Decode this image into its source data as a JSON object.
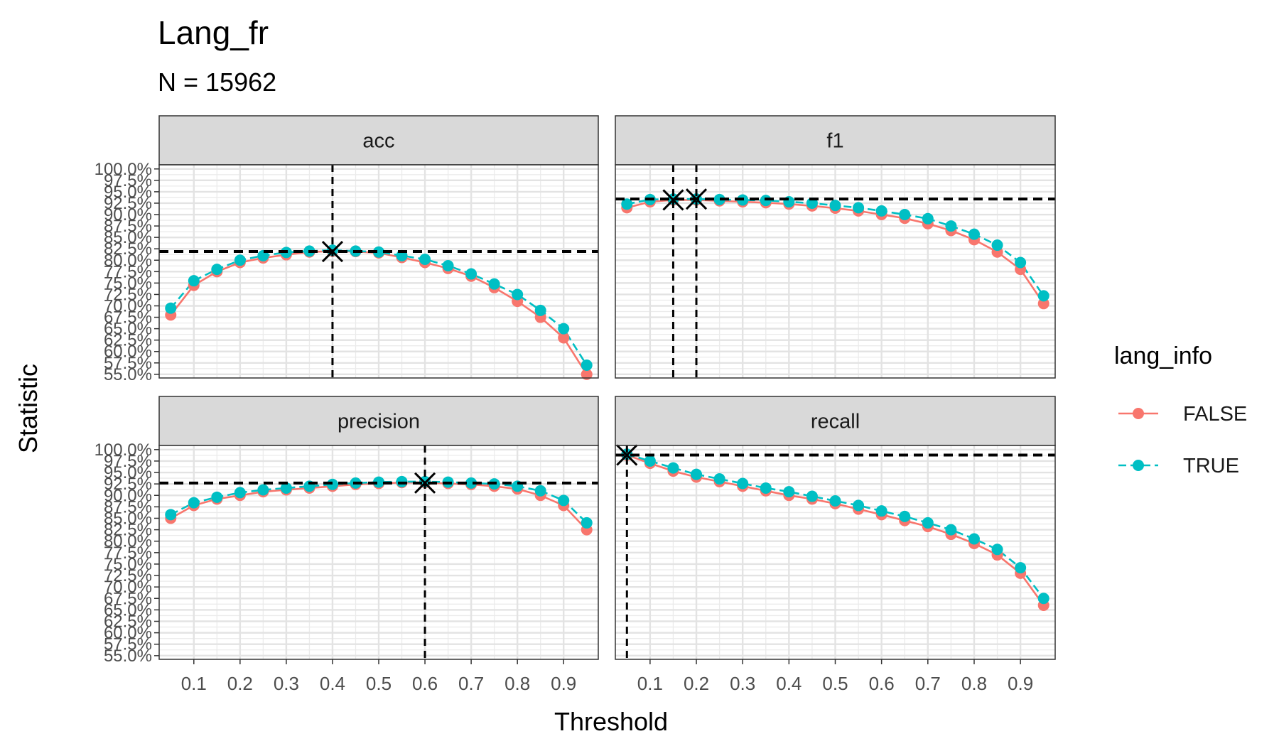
{
  "title": "Lang_fr",
  "subtitle": "N = 15962",
  "xlabel": "Threshold",
  "ylabel": "Statistic",
  "legend": {
    "title": "lang_info",
    "entries": [
      {
        "label": "FALSE",
        "color": "#F8766D"
      },
      {
        "label": "TRUE",
        "color": "#00BFC4"
      }
    ]
  },
  "chart_data": {
    "type": "line",
    "facets": [
      "acc",
      "f1",
      "precision",
      "recall"
    ],
    "x_ticks": [
      "0.1",
      "0.2",
      "0.3",
      "0.4",
      "0.5",
      "0.6",
      "0.7",
      "0.8",
      "0.9"
    ],
    "y_ticks": [
      "55.0%",
      "57.5%",
      "60.0%",
      "62.5%",
      "65.0%",
      "67.5%",
      "70.0%",
      "72.5%",
      "75.0%",
      "77.5%",
      "80.0%",
      "82.5%",
      "85.0%",
      "87.5%",
      "90.0%",
      "92.5%",
      "95.0%",
      "97.5%",
      "100.0%"
    ],
    "xlim": [
      0.025,
      0.975
    ],
    "x": [
      0.05,
      0.1,
      0.15,
      0.2,
      0.25,
      0.3,
      0.35,
      0.4,
      0.45,
      0.5,
      0.55,
      0.6,
      0.65,
      0.7,
      0.75,
      0.8,
      0.85,
      0.9,
      0.95
    ],
    "panels": [
      {
        "name": "acc",
        "ylim": [
          54.2,
          100.9
        ],
        "series": [
          {
            "name": "FALSE",
            "values": [
              68.0,
              74.5,
              77.5,
              79.5,
              80.5,
              81.2,
              81.8,
              82.0,
              81.9,
              81.6,
              80.6,
              79.5,
              78.2,
              76.5,
              74.0,
              71.0,
              67.5,
              63.0,
              55.0
            ]
          },
          {
            "name": "TRUE",
            "values": [
              69.5,
              75.5,
              78.0,
              80.0,
              81.0,
              81.7,
              82.0,
              82.2,
              82.0,
              81.8,
              81.0,
              80.2,
              78.8,
              77.0,
              74.8,
              72.5,
              69.0,
              65.0,
              57.0
            ]
          }
        ],
        "best": [
          {
            "x": 0.4,
            "y": 81.9
          }
        ]
      },
      {
        "name": "f1",
        "ylim": [
          54.2,
          100.9
        ],
        "series": [
          {
            "name": "FALSE",
            "values": [
              91.5,
              92.8,
              93.2,
              93.2,
              93.0,
              92.8,
              92.6,
              92.3,
              91.9,
              91.4,
              90.8,
              90.0,
              89.2,
              88.0,
              86.5,
              84.5,
              81.8,
              78.0,
              70.5
            ]
          },
          {
            "name": "TRUE",
            "values": [
              92.3,
              93.3,
              93.4,
              93.4,
              93.3,
              93.2,
              93.1,
              92.8,
              92.5,
              92.0,
              91.5,
              90.8,
              90.0,
              89.1,
              87.5,
              85.7,
              83.3,
              79.5,
              72.2
            ]
          }
        ],
        "best": [
          {
            "x": 0.15,
            "y": 93.2
          },
          {
            "x": 0.2,
            "y": 93.4
          }
        ]
      },
      {
        "name": "precision",
        "ylim": [
          54.2,
          100.9
        ],
        "series": [
          {
            "name": "FALSE",
            "values": [
              85.0,
              87.8,
              89.2,
              90.0,
              90.8,
              91.2,
              91.6,
              92.0,
              92.4,
              92.6,
              92.8,
              92.8,
              92.6,
              92.4,
              92.0,
              91.4,
              90.0,
              87.8,
              82.5
            ]
          },
          {
            "name": "TRUE",
            "values": [
              85.8,
              88.4,
              89.6,
              90.6,
              91.2,
              91.6,
              92.0,
              92.4,
              92.7,
              92.9,
              93.0,
              93.0,
              92.9,
              92.7,
              92.5,
              92.0,
              91.0,
              88.9,
              84.0
            ]
          }
        ],
        "best": [
          {
            "x": 0.6,
            "y": 92.7
          }
        ]
      },
      {
        "name": "recall",
        "ylim": [
          54.2,
          100.9
        ],
        "series": [
          {
            "name": "FALSE",
            "values": [
              98.8,
              97.0,
              95.3,
              94.0,
              93.0,
              92.0,
              91.0,
              90.0,
              89.2,
              88.2,
              87.0,
              85.8,
              84.5,
              83.2,
              81.5,
              79.5,
              77.0,
              73.0,
              66.0
            ]
          },
          {
            "name": "TRUE",
            "values": [
              99.0,
              97.5,
              96.0,
              94.6,
              93.6,
              92.6,
              91.6,
              90.8,
              89.8,
              88.8,
              87.8,
              86.6,
              85.4,
              84.0,
              82.5,
              80.5,
              78.2,
              74.2,
              67.5
            ]
          }
        ],
        "best": [
          {
            "x": 0.05,
            "y": 98.8
          }
        ]
      }
    ]
  }
}
